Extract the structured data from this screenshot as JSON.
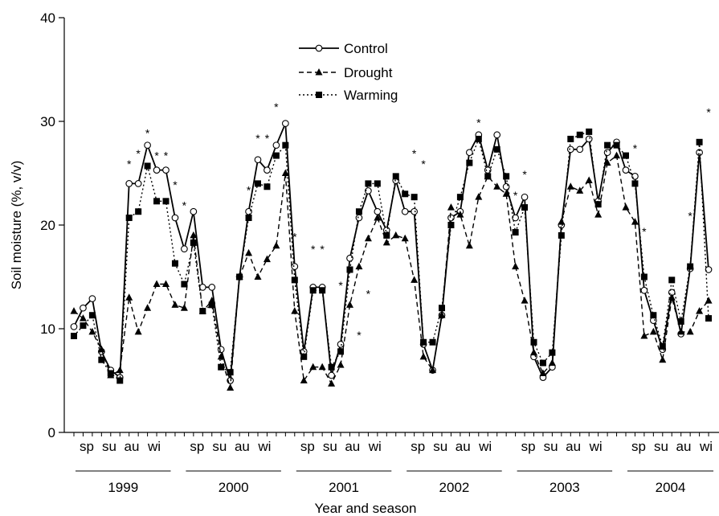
{
  "chart_data": {
    "type": "line",
    "ylabel": "Soil moisture (%, v/v)",
    "xlabel": "Year and season",
    "ylim": [
      0,
      40
    ],
    "yticks": [
      0,
      10,
      20,
      30,
      40
    ],
    "season_labels": [
      "sp",
      "su",
      "au",
      "wi"
    ],
    "years": [
      "1999",
      "2000",
      "2001",
      "2002",
      "2003",
      "2004"
    ],
    "legend": {
      "placement": "top-center"
    },
    "series": [
      {
        "name": "Control",
        "line_style": "solid",
        "marker": "open-circle",
        "values": [
          10.2,
          12.0,
          12.9,
          7.8,
          6.0,
          5.3,
          24.0,
          24.0,
          27.7,
          25.3,
          25.3,
          20.7,
          17.7,
          21.3,
          14.0,
          14.0,
          8.0,
          5.0,
          15.0,
          21.3,
          26.3,
          25.3,
          27.7,
          29.8,
          16.0,
          7.8,
          14.0,
          14.0,
          5.5,
          8.5,
          16.8,
          20.7,
          23.3,
          21.3,
          19.5,
          24.3,
          21.3,
          21.3,
          8.5,
          6.0,
          11.3,
          20.7,
          21.3,
          27.0,
          28.7,
          25.3,
          28.7,
          23.7,
          20.7,
          22.7,
          7.3,
          5.3,
          6.3,
          20.0,
          27.3,
          27.3,
          28.3,
          22.3,
          27.0,
          28.0,
          25.3,
          24.7,
          13.7,
          10.8,
          8.0,
          13.5,
          9.5,
          15.8,
          27.0,
          15.7
        ]
      },
      {
        "name": "Drought",
        "line_style": "dashed",
        "marker": "filled-triangle",
        "values": [
          11.7,
          11.0,
          9.7,
          8.0,
          5.5,
          6.0,
          13.0,
          9.7,
          12.0,
          14.3,
          14.3,
          12.3,
          12.0,
          19.0,
          11.7,
          12.7,
          7.3,
          4.3,
          15.0,
          17.3,
          15.0,
          16.7,
          18.0,
          25.0,
          11.7,
          5.0,
          6.3,
          6.3,
          4.7,
          6.5,
          12.3,
          16.0,
          18.7,
          20.7,
          18.3,
          19.0,
          18.7,
          14.7,
          7.3,
          6.0,
          11.3,
          21.7,
          21.0,
          18.0,
          22.7,
          24.7,
          23.7,
          23.0,
          16.0,
          12.7,
          7.7,
          5.7,
          6.7,
          20.3,
          23.7,
          23.3,
          24.3,
          21.0,
          26.0,
          26.7,
          21.7,
          20.3,
          9.3,
          9.7,
          7.0,
          13.0,
          9.7,
          9.7,
          11.7,
          12.7
        ]
      },
      {
        "name": "Warming",
        "line_style": "dotted",
        "marker": "filled-square",
        "values": [
          9.3,
          10.3,
          11.3,
          7.0,
          5.7,
          5.0,
          20.7,
          21.3,
          25.7,
          22.3,
          22.3,
          16.3,
          14.3,
          18.3,
          11.7,
          12.3,
          6.3,
          5.8,
          15.0,
          20.7,
          24.0,
          23.7,
          26.7,
          27.7,
          14.7,
          7.3,
          13.7,
          13.7,
          6.3,
          7.8,
          15.7,
          21.3,
          24.0,
          24.0,
          19.0,
          24.7,
          23.0,
          22.7,
          8.7,
          8.7,
          12.0,
          20.0,
          22.7,
          26.0,
          28.3,
          24.7,
          27.3,
          24.7,
          19.3,
          21.7,
          8.7,
          6.7,
          7.7,
          19.0,
          28.3,
          28.7,
          29.0,
          22.0,
          27.7,
          27.7,
          26.7,
          24.0,
          15.0,
          11.3,
          8.3,
          14.7,
          10.7,
          16.0,
          28.0,
          11.0
        ]
      }
    ],
    "significance_marks": [
      {
        "index": 6,
        "y": 25.5,
        "text": "*"
      },
      {
        "index": 7,
        "y": 26.5,
        "text": "*"
      },
      {
        "index": 8,
        "y": 28.5,
        "text": "*"
      },
      {
        "index": 9,
        "y": 26.3,
        "text": "*"
      },
      {
        "index": 10,
        "y": 26.3,
        "text": "*"
      },
      {
        "index": 11,
        "y": 23.5,
        "text": "*"
      },
      {
        "index": 12,
        "y": 21.5,
        "text": "*"
      },
      {
        "index": 19,
        "y": 23.0,
        "text": "*"
      },
      {
        "index": 20,
        "y": 28.0,
        "text": "*"
      },
      {
        "index": 21,
        "y": 28.0,
        "text": "*"
      },
      {
        "index": 22,
        "y": 31.0,
        "text": "*"
      },
      {
        "index": 24,
        "y": 18.5,
        "text": "*"
      },
      {
        "index": 26,
        "y": 17.3,
        "text": "*"
      },
      {
        "index": 27,
        "y": 17.3,
        "text": "*"
      },
      {
        "index": 29,
        "y": 13.8,
        "text": "*"
      },
      {
        "index": 31,
        "y": 9.0,
        "text": "*"
      },
      {
        "index": 32,
        "y": 13.0,
        "text": "*"
      },
      {
        "index": 37,
        "y": 26.5,
        "text": "*"
      },
      {
        "index": 38,
        "y": 25.5,
        "text": "*"
      },
      {
        "index": 44,
        "y": 29.5,
        "text": "*"
      },
      {
        "index": 48,
        "y": 22.5,
        "text": "*"
      },
      {
        "index": 49,
        "y": 24.5,
        "text": "*"
      },
      {
        "index": 61,
        "y": 27.0,
        "text": "*"
      },
      {
        "index": 62,
        "y": 19.0,
        "text": "*"
      },
      {
        "index": 67,
        "y": 20.5,
        "text": "*"
      },
      {
        "index": 69,
        "y": 30.5,
        "text": "*"
      }
    ]
  }
}
